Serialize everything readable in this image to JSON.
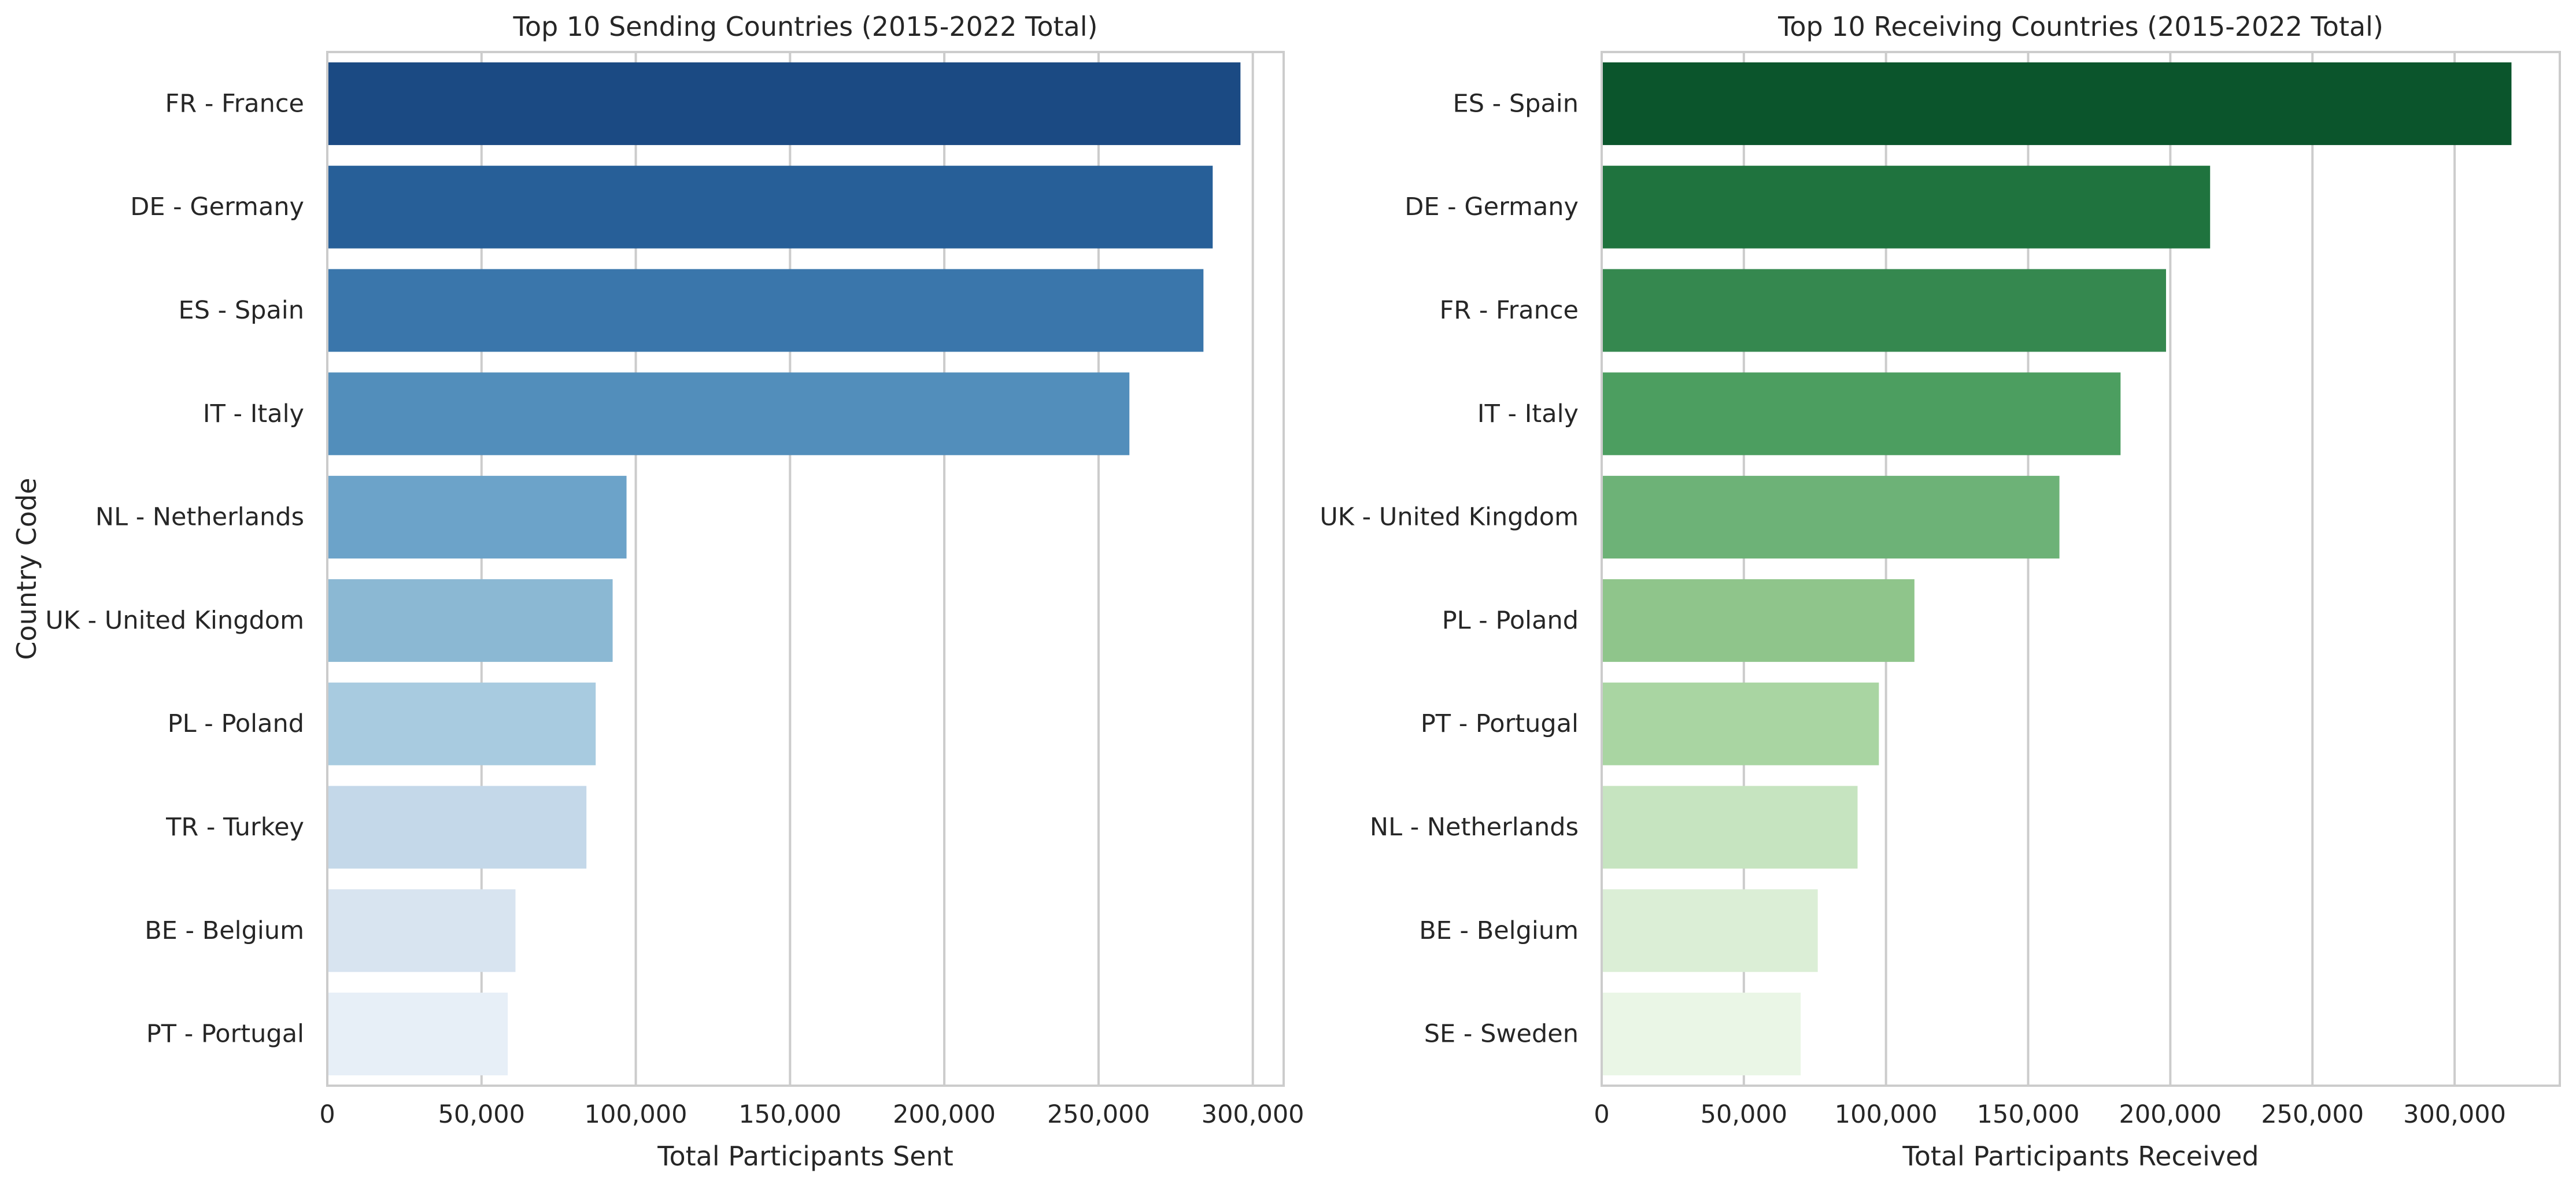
{
  "chart_data": [
    {
      "type": "bar",
      "orientation": "horizontal",
      "title": "Top 10 Sending Countries (2015-2022 Total)",
      "xlabel": "Total Participants Sent",
      "ylabel": "Country Code",
      "xlim": [
        0,
        310000
      ],
      "xticks": [
        0,
        50000,
        100000,
        150000,
        200000,
        250000,
        300000
      ],
      "xtick_labels": [
        "0",
        "50,000",
        "100,000",
        "150,000",
        "200,000",
        "250,000",
        "300,000"
      ],
      "grid": "vertical",
      "categories": [
        "FR - France",
        "DE - Germany",
        "ES - Spain",
        "IT - Italy",
        "NL - Netherlands",
        "UK - United Kingdom",
        "PL - Poland",
        "TR - Turkey",
        "BE - Belgium",
        "PT - Portugal"
      ],
      "values": [
        296000,
        287000,
        284000,
        260000,
        97000,
        92500,
        87000,
        84000,
        61000,
        58500
      ],
      "colors": [
        "#1b4a83",
        "#275f98",
        "#3a76ab",
        "#528ebb",
        "#6ca3c9",
        "#8bb8d3",
        "#a8cbe0",
        "#c4d8e9",
        "#d8e4f0",
        "#e7eff7"
      ]
    },
    {
      "type": "bar",
      "orientation": "horizontal",
      "title": "Top 10 Receiving Countries (2015-2022 Total)",
      "xlabel": "Total Participants Received",
      "ylabel": "",
      "xlim": [
        0,
        337000
      ],
      "xticks": [
        0,
        50000,
        100000,
        150000,
        200000,
        250000,
        300000
      ],
      "xtick_labels": [
        "0",
        "50,000",
        "100,000",
        "150,000",
        "200,000",
        "250,000",
        "300,000"
      ],
      "grid": "vertical",
      "categories": [
        "ES - Spain",
        "DE - Germany",
        "FR - France",
        "IT - Italy",
        "UK - United Kingdom",
        "PL - Poland",
        "PT - Portugal",
        "NL - Netherlands",
        "BE - Belgium",
        "SE - Sweden"
      ],
      "values": [
        320000,
        214000,
        198500,
        182500,
        161000,
        110000,
        97500,
        90000,
        76000,
        70000
      ],
      "colors": [
        "#0b552c",
        "#1f733e",
        "#35884f",
        "#4c9e60",
        "#6db277",
        "#8fc58b",
        "#a9d5a2",
        "#c6e4c0",
        "#dbeed6",
        "#eaf6e6"
      ]
    }
  ]
}
